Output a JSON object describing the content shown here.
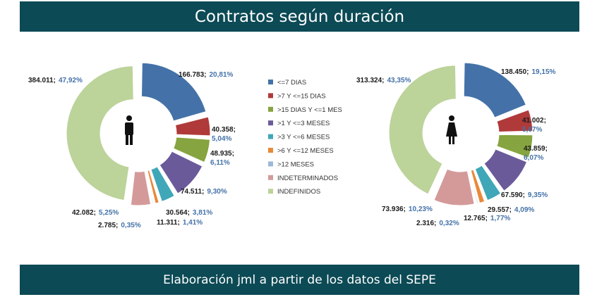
{
  "header": {
    "title": "Contratos según duración"
  },
  "footer": {
    "credit": "Elaboración jml a partir de los datos del SEPE"
  },
  "legend": {
    "items": [
      {
        "label": "<=7 DIAS",
        "color": "#4472a8"
      },
      {
        "label": ">7 Y <=15 DIAS",
        "color": "#b03a3a"
      },
      {
        "label": ">15 DIAS Y <=1 MES",
        "color": "#86a43f"
      },
      {
        "label": ">1 Y <=3 MESES",
        "color": "#6a5a9a"
      },
      {
        "label": ">3 Y <=6 MESES",
        "color": "#3fa7b8"
      },
      {
        "label": ">6 Y <=12 MESES",
        "color": "#e8893a"
      },
      {
        "label": ">12 MESES",
        "color": "#9cb8d8"
      },
      {
        "label": "INDETERMINADOS",
        "color": "#d49a9a"
      },
      {
        "label": "INDEFINIDOS",
        "color": "#bcd39a"
      }
    ]
  },
  "chart_data": [
    {
      "type": "pie",
      "name": "hombres",
      "icon": "male-icon",
      "categories": [
        "<=7 DIAS",
        ">7 Y <=15 DIAS",
        ">15 DIAS Y <=1 MES",
        ">1 Y <=3 MESES",
        ">3 Y <=6 MESES",
        ">6 Y <=12 MESES",
        ">12 MESES",
        "INDETERMINADOS",
        "INDEFINIDOS"
      ],
      "values": [
        166783,
        40358,
        48935,
        74511,
        30564,
        11311,
        2785,
        42082,
        384011
      ],
      "value_labels": [
        "166.783;",
        "40.358;",
        "48.935;",
        "74.511;",
        "30.564;",
        "11.311;",
        "2.785;",
        "42.082;",
        "384.011;"
      ],
      "percent_labels": [
        "20,81%",
        "5,04%",
        "6,11%",
        "9,30%",
        "3,81%",
        "1,41%",
        "0,35%",
        "5,25%",
        "47,92%"
      ]
    },
    {
      "type": "pie",
      "name": "mujeres",
      "icon": "female-icon",
      "categories": [
        "<=7 DIAS",
        ">7 Y <=15 DIAS",
        ">15 DIAS Y <=1 MES",
        ">1 Y <=3 MESES",
        ">3 Y <=6 MESES",
        ">6 Y <=12 MESES",
        ">12 MESES",
        "INDETERMINADOS",
        "INDEFINIDOS"
      ],
      "values": [
        138450,
        41002,
        43859,
        67590,
        29557,
        12765,
        2316,
        73936,
        313324
      ],
      "value_labels": [
        "138.450;",
        "41.002;",
        "43.859;",
        "67.590;",
        "29.557;",
        "12.765;",
        "2.316;",
        "73.936;",
        "313.324;"
      ],
      "percent_labels": [
        "19,15%",
        "5,67%",
        "6,07%",
        "9,35%",
        "4,09%",
        "1,77%",
        "0,32%",
        "10,23%",
        "43,35%"
      ]
    }
  ]
}
